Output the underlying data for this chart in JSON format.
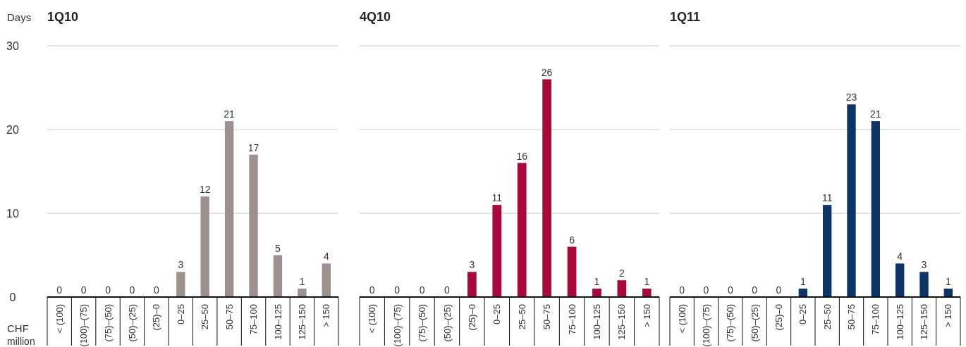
{
  "chart_data": [
    {
      "type": "bar",
      "title": "1Q10",
      "ylabel": "Days",
      "xlabel": "CHF million",
      "categories": [
        "< (100)",
        "(100)–(75)",
        "(75)–(50)",
        "(50)–(25)",
        "(25)–0",
        "0–25",
        "25–50",
        "50–75",
        "75–100",
        "100–125",
        "125–150",
        "> 150"
      ],
      "values": [
        0,
        0,
        0,
        0,
        0,
        3,
        12,
        21,
        17,
        5,
        1,
        4
      ],
      "color": "#9c918c",
      "ylim": [
        0,
        30
      ],
      "yticks": [
        0,
        10,
        20,
        30
      ],
      "grid": "y",
      "data_labels": true
    },
    {
      "type": "bar",
      "title": "4Q10",
      "categories": [
        "< (100)",
        "(100)–(75)",
        "(75)–(50)",
        "(50)–(25)",
        "(25)–0",
        "0–25",
        "25–50",
        "50–75",
        "75–100",
        "100–125",
        "125–150",
        "> 150"
      ],
      "values": [
        0,
        0,
        0,
        0,
        3,
        11,
        16,
        26,
        6,
        1,
        2,
        1
      ],
      "color": "#a8083a",
      "ylim": [
        0,
        30
      ],
      "yticks": [
        0,
        10,
        20,
        30
      ],
      "grid": "y",
      "data_labels": true,
      "tick_labels": "x"
    },
    {
      "type": "bar",
      "title": "1Q11",
      "categories": [
        "< (100)",
        "(100)–(75)",
        "(75)–(50)",
        "(50)–(25)",
        "(25)–0",
        "0–25",
        "25–50",
        "50–75",
        "75–100",
        "100–125",
        "125–150",
        "> 150"
      ],
      "values": [
        0,
        0,
        0,
        0,
        0,
        1,
        11,
        23,
        21,
        4,
        3,
        1
      ],
      "color": "#0d3466",
      "ylim": [
        0,
        30
      ],
      "yticks": [
        0,
        10,
        20,
        30
      ],
      "grid": "y",
      "data_labels": true,
      "tick_labels": "x"
    }
  ]
}
